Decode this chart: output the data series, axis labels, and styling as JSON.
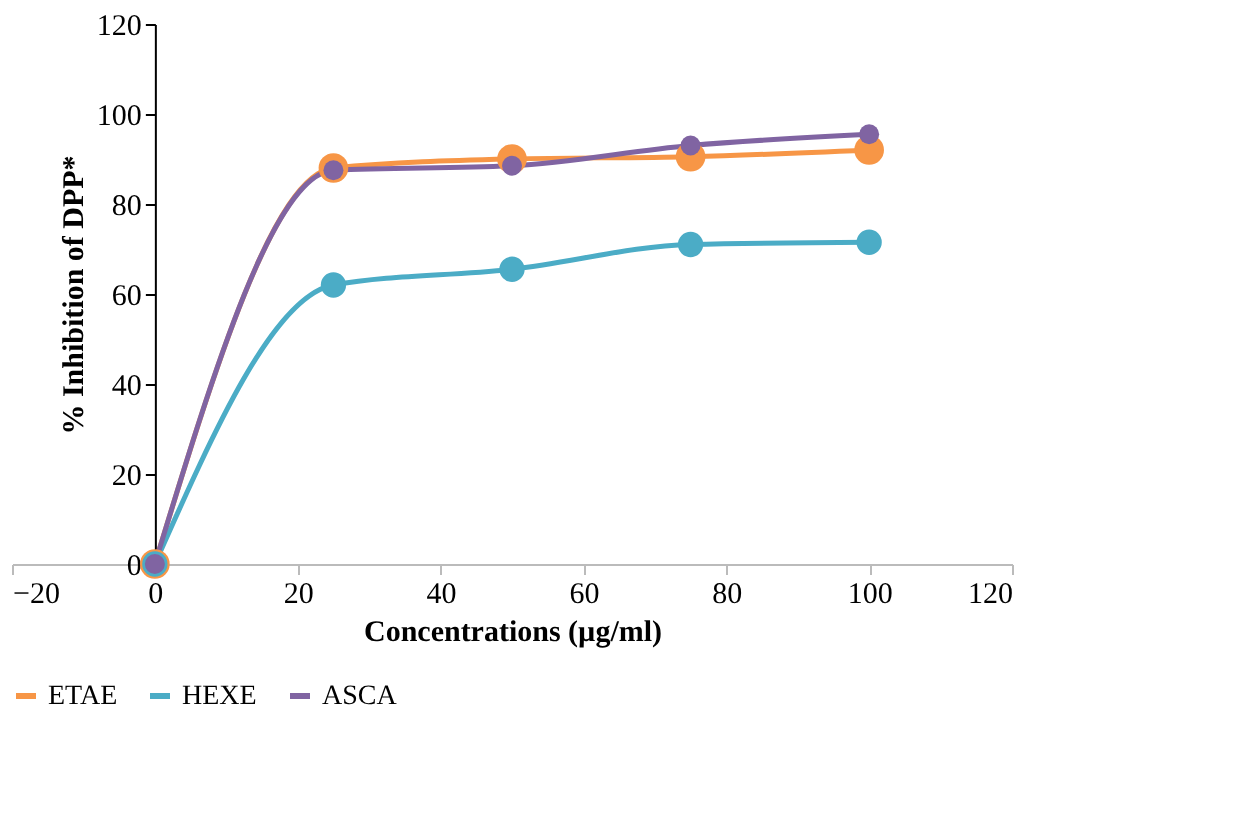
{
  "chart_data": {
    "type": "line",
    "xlabel": "Concentrations (µg/ml)",
    "ylabel": "% Inhibition of DPP*",
    "x": [
      0,
      25,
      50,
      75,
      100
    ],
    "series": [
      {
        "name": "ETAE",
        "color": "#f79646",
        "values": [
          0,
          88,
          90,
          90.5,
          92
        ]
      },
      {
        "name": "HEXE",
        "color": "#4bacc6",
        "values": [
          0,
          62,
          65.5,
          71,
          71.5
        ]
      },
      {
        "name": "ASCA",
        "color": "#8064a2",
        "values": [
          0,
          87.5,
          88.5,
          93,
          95.5
        ]
      }
    ],
    "xlim": [
      -20,
      120
    ],
    "xticks": [
      -20,
      0,
      20,
      40,
      60,
      80,
      100,
      120
    ],
    "ylim": [
      0,
      120
    ],
    "yticks": [
      0,
      20,
      40,
      60,
      80,
      100,
      120
    ],
    "grid": false,
    "legend": "bottom",
    "marker": "circle",
    "line_style": "solid"
  }
}
